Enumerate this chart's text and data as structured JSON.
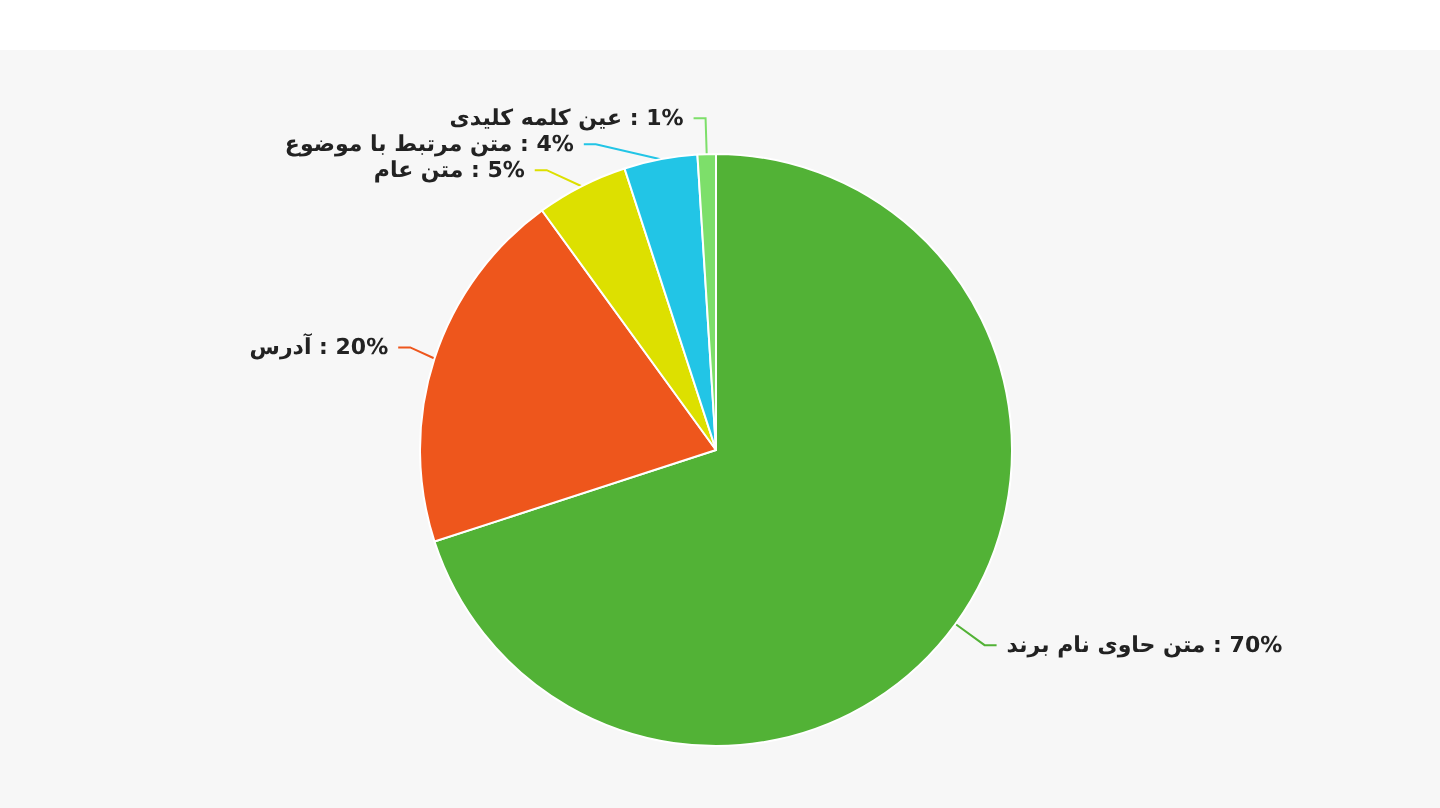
{
  "chart_data": {
    "type": "pie",
    "categories": [
      "متن حاوی نام برند",
      "آدرس",
      "متن عام",
      "متن مرتبط با موضوع",
      "عین کلمه کلیدی"
    ],
    "values": [
      70,
      20,
      5,
      4,
      1
    ],
    "colors": [
      "#52b236",
      "#ee561c",
      "#dde000",
      "#22c5e6",
      "#7ddf6a"
    ],
    "value_labels": [
      ": 70%",
      ": 20%",
      ": 5%",
      ": 4%",
      ": 1%"
    ],
    "legend": false
  }
}
